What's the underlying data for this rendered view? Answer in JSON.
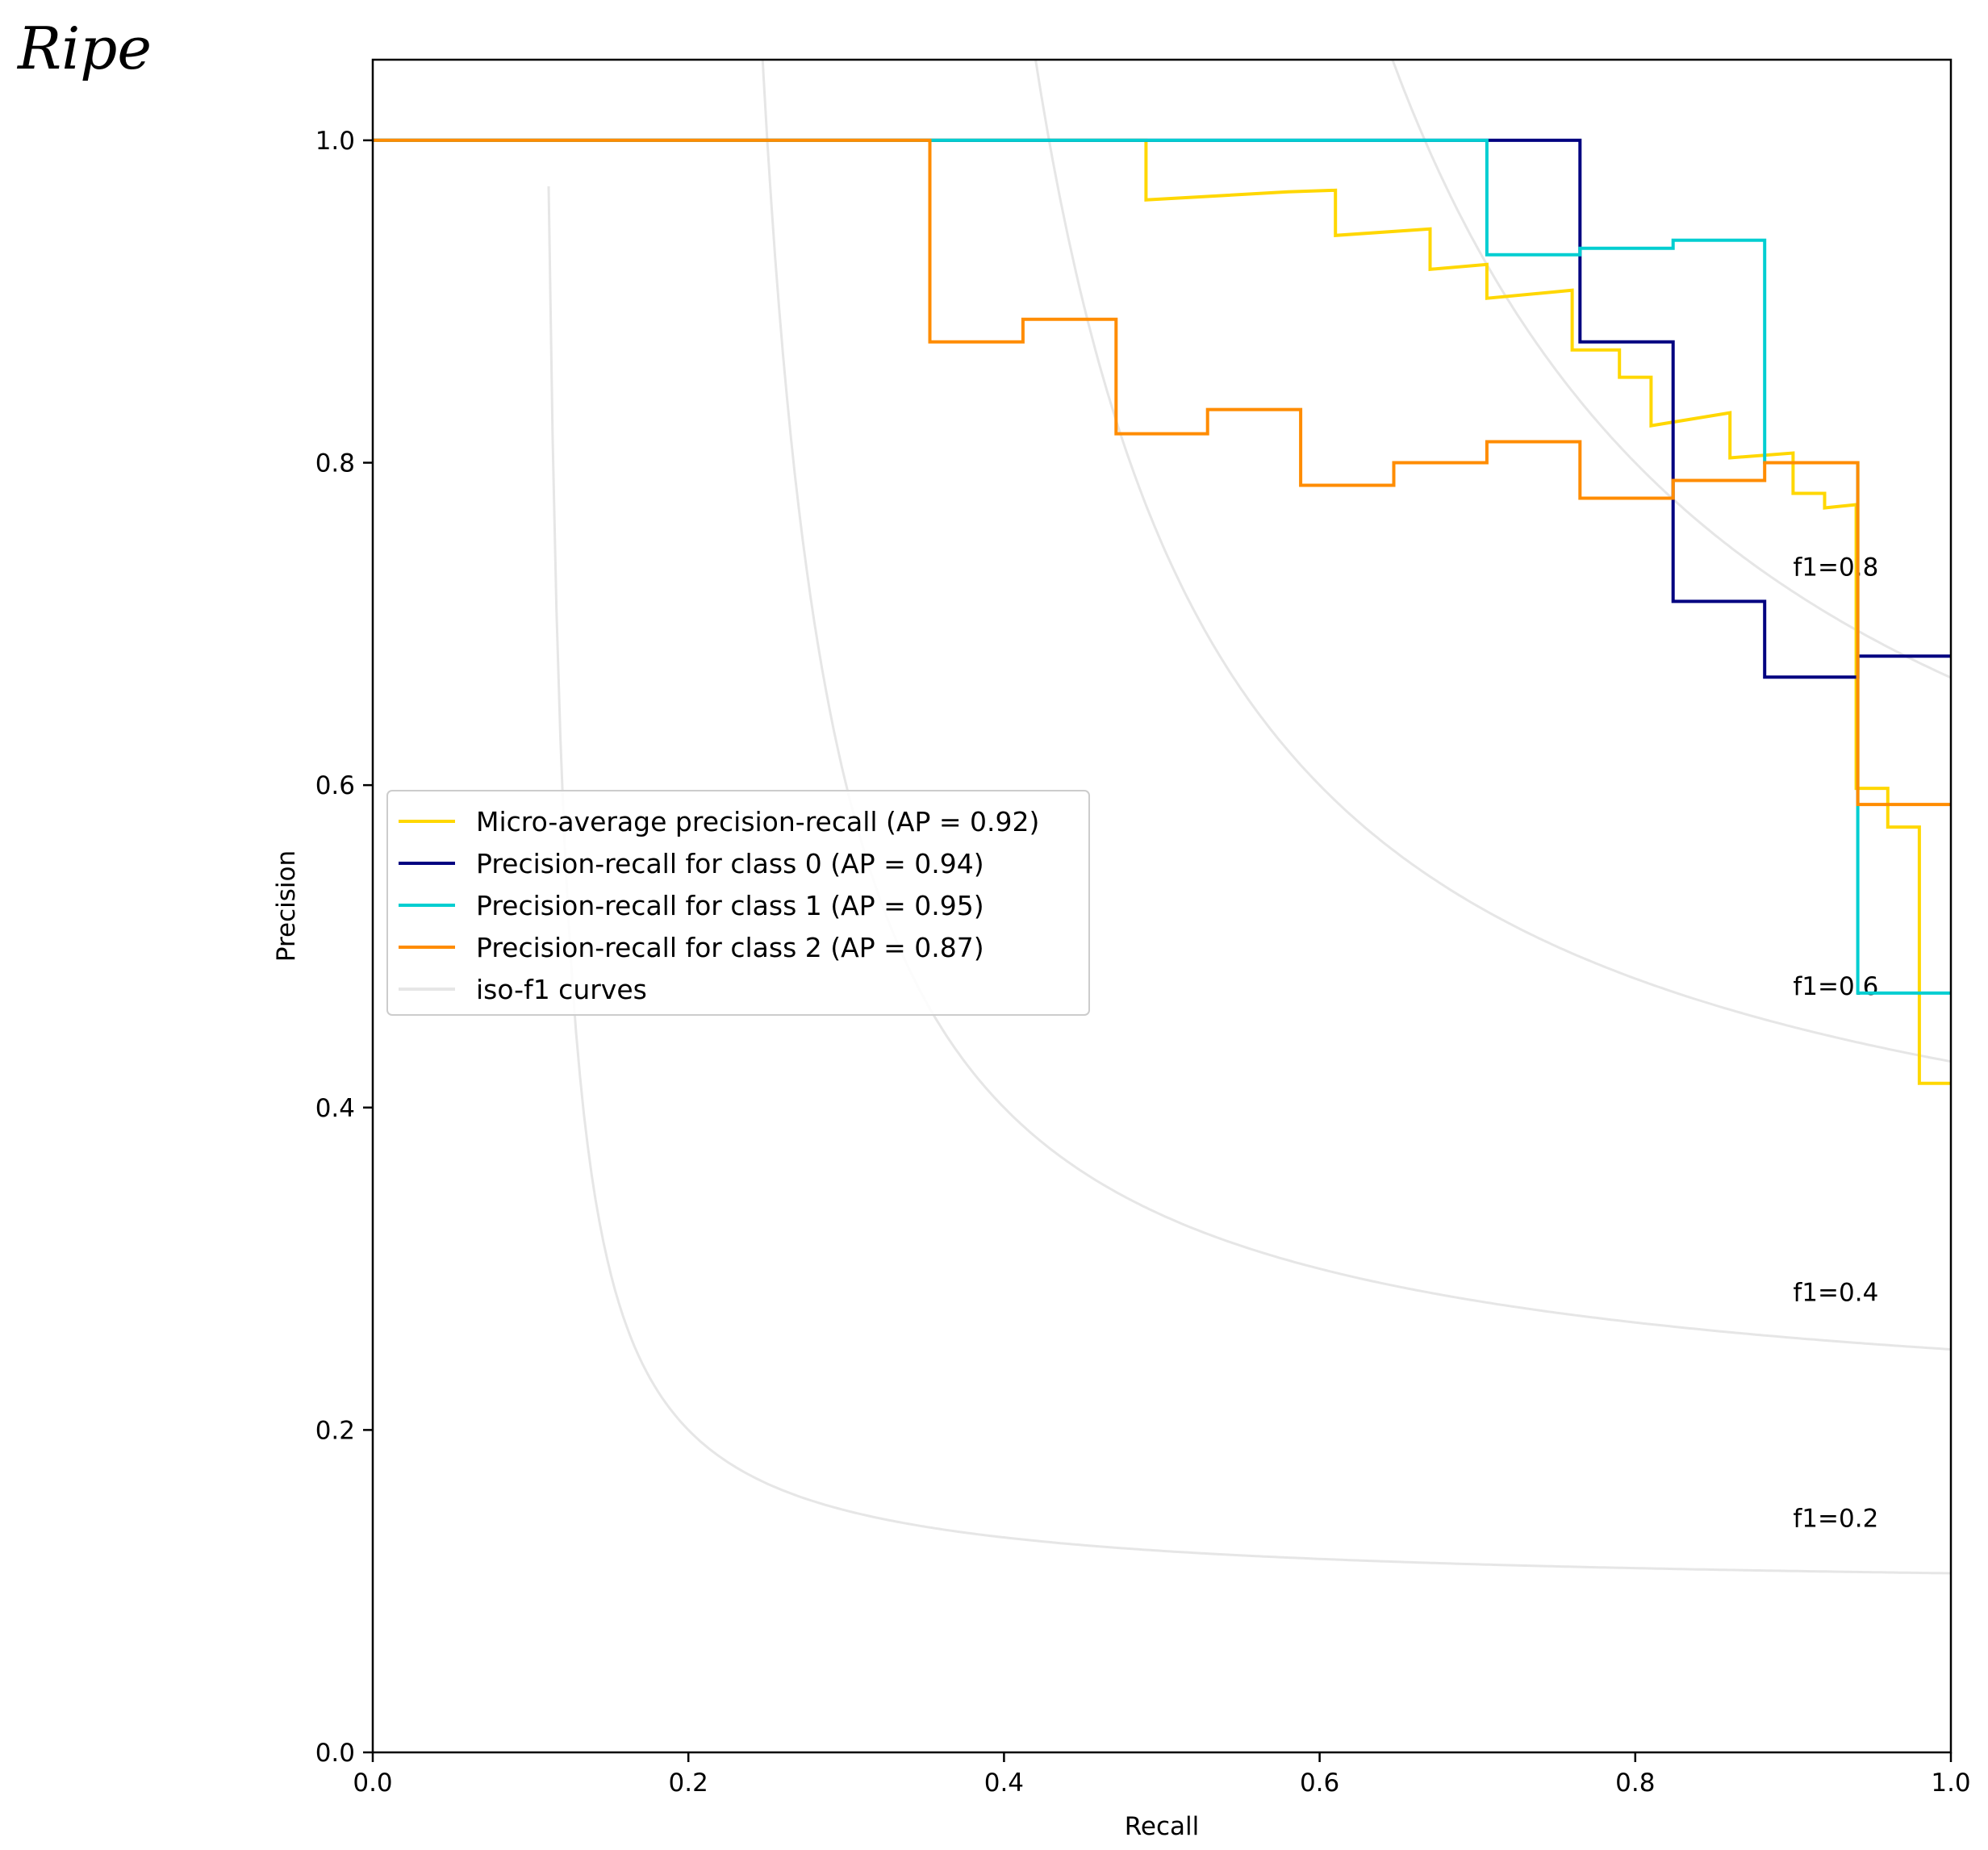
{
  "chart_data": {
    "type": "line",
    "title": "Ripe",
    "xlabel": "Recall",
    "ylabel": "Precision",
    "xlim": [
      0.0,
      1.0
    ],
    "ylim": [
      0.0,
      1.05
    ],
    "x_ticks": [
      {
        "value": 0.0,
        "label": "0.0"
      },
      {
        "value": 0.2,
        "label": "0.2"
      },
      {
        "value": 0.4,
        "label": "0.4"
      },
      {
        "value": 0.6,
        "label": "0.6"
      },
      {
        "value": 0.8,
        "label": "0.8"
      },
      {
        "value": 1.0,
        "label": "1.0"
      }
    ],
    "y_ticks": [
      {
        "value": 0.0,
        "label": "0.0"
      },
      {
        "value": 0.2,
        "label": "0.2"
      },
      {
        "value": 0.4,
        "label": "0.4"
      },
      {
        "value": 0.6,
        "label": "0.6"
      },
      {
        "value": 0.8,
        "label": "0.8"
      },
      {
        "value": 1.0,
        "label": "1.0"
      }
    ],
    "grid": false,
    "legend_position": "center-left",
    "iso_f1": {
      "legend_label": "iso-f1 curves",
      "color": "#e6e6e6",
      "curves": [
        {
          "f1": 0.2,
          "label": "f1=0.2",
          "label_x": 0.9,
          "label_y": 0.14
        },
        {
          "f1": 0.4,
          "label": "f1=0.4",
          "label_x": 0.9,
          "label_y": 0.28
        },
        {
          "f1": 0.6,
          "label": "f1=0.6",
          "label_x": 0.9,
          "label_y": 0.47
        },
        {
          "f1": 0.8,
          "label": "f1=0.8",
          "label_x": 0.9,
          "label_y": 0.73
        }
      ]
    },
    "series": [
      {
        "name": "Micro-average precision-recall (AP = 0.92)",
        "color": "#ffd700",
        "recall": [
          0.0,
          0.49,
          0.49,
          0.58,
          0.61,
          0.61,
          0.67,
          0.67,
          0.706,
          0.706,
          0.76,
          0.76,
          0.79,
          0.79,
          0.81,
          0.81,
          0.86,
          0.86,
          0.9,
          0.9,
          0.92,
          0.92,
          0.94,
          0.94,
          0.96,
          0.96,
          0.98,
          0.98,
          1.0
        ],
        "precision": [
          1.0,
          1.0,
          0.963,
          0.968,
          0.969,
          0.941,
          0.945,
          0.92,
          0.923,
          0.902,
          0.907,
          0.87,
          0.87,
          0.853,
          0.853,
          0.823,
          0.831,
          0.803,
          0.806,
          0.781,
          0.781,
          0.772,
          0.774,
          0.598,
          0.598,
          0.574,
          0.574,
          0.415,
          0.415
        ]
      },
      {
        "name": "Precision-recall for class 0 (AP = 0.94)",
        "color": "#000080",
        "recall": [
          0.0,
          0.765,
          0.765,
          0.824,
          0.824,
          0.882,
          0.882,
          0.941,
          0.941,
          1.0
        ],
        "precision": [
          1.0,
          1.0,
          0.875,
          0.875,
          0.714,
          0.714,
          0.667,
          0.667,
          0.68,
          0.68
        ]
      },
      {
        "name": "Precision-recall for class 1 (AP = 0.95)",
        "color": "#00ced1",
        "recall": [
          0.0,
          0.706,
          0.706,
          0.765,
          0.765,
          0.824,
          0.824,
          0.882,
          0.882,
          0.941,
          0.941,
          1.0
        ],
        "precision": [
          1.0,
          1.0,
          0.929,
          0.929,
          0.933,
          0.933,
          0.938,
          0.938,
          0.8,
          0.8,
          0.471,
          0.471
        ]
      },
      {
        "name": "Precision-recall for class 2 (AP = 0.87)",
        "color": "#ff8c00",
        "recall": [
          0.0,
          0.353,
          0.353,
          0.412,
          0.412,
          0.471,
          0.471,
          0.529,
          0.529,
          0.588,
          0.588,
          0.647,
          0.647,
          0.706,
          0.706,
          0.765,
          0.765,
          0.824,
          0.824,
          0.882,
          0.882,
          0.941,
          0.941,
          1.0
        ],
        "precision": [
          1.0,
          1.0,
          0.875,
          0.875,
          0.889,
          0.889,
          0.818,
          0.818,
          0.833,
          0.833,
          0.786,
          0.786,
          0.8,
          0.8,
          0.813,
          0.813,
          0.778,
          0.778,
          0.789,
          0.789,
          0.8,
          0.8,
          0.588,
          0.588
        ]
      }
    ]
  }
}
